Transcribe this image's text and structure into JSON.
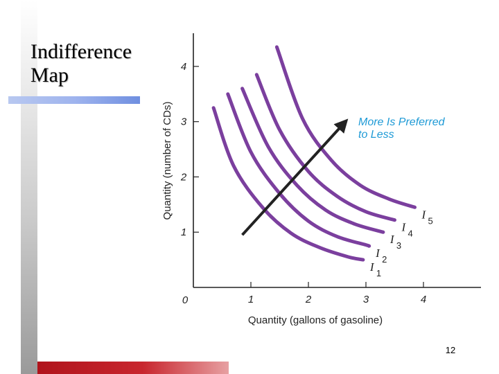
{
  "slide": {
    "title_lines": [
      "Indifference",
      "Map"
    ],
    "page_number": "12"
  },
  "colors": {
    "curve": "#7b3f9e",
    "annotation": "#1e9ad6",
    "arrow": "#222222",
    "axis_text": "#222222",
    "left_bar": "#b5b5b5",
    "top_rule": "#9fb4ee",
    "bottom_bar": "#c0141c"
  },
  "chart_data": {
    "type": "line",
    "title": "",
    "xlabel": "Quantity (gallons of gasoline)",
    "ylabel": "Quantity (number of CDs)",
    "xlim": [
      0,
      5
    ],
    "ylim": [
      0,
      4.6
    ],
    "origin_label": "0",
    "x_ticks": [
      1,
      2,
      3,
      4
    ],
    "x_tick_labels": [
      "1",
      "2",
      "3",
      "4"
    ],
    "y_ticks": [
      1,
      2,
      3,
      4
    ],
    "y_tick_labels": [
      "1",
      "2",
      "3",
      "4"
    ],
    "grid": false,
    "series": [
      {
        "name": "I",
        "subscript": "1",
        "x": [
          0.35,
          0.7,
          1.2,
          1.7,
          2.2,
          2.7,
          2.95
        ],
        "y": [
          3.25,
          2.2,
          1.45,
          0.98,
          0.72,
          0.55,
          0.5
        ]
      },
      {
        "name": "I",
        "subscript": "2",
        "x": [
          0.6,
          1.0,
          1.5,
          2.0,
          2.5,
          3.0,
          3.05
        ],
        "y": [
          3.5,
          2.45,
          1.7,
          1.2,
          0.92,
          0.77,
          0.75
        ]
      },
      {
        "name": "I",
        "subscript": "3",
        "x": [
          0.85,
          1.3,
          1.8,
          2.3,
          2.8,
          3.3
        ],
        "y": [
          3.6,
          2.55,
          1.85,
          1.4,
          1.15,
          1.0
        ]
      },
      {
        "name": "I",
        "subscript": "4",
        "x": [
          1.1,
          1.5,
          2.0,
          2.5,
          3.0,
          3.5
        ],
        "y": [
          3.85,
          2.85,
          2.1,
          1.65,
          1.37,
          1.22
        ]
      },
      {
        "name": "I",
        "subscript": "5",
        "x": [
          1.45,
          1.9,
          2.4,
          2.9,
          3.4,
          3.85
        ],
        "y": [
          4.35,
          3.05,
          2.3,
          1.85,
          1.6,
          1.45
        ]
      }
    ],
    "arrow": {
      "from": [
        0.85,
        0.95
      ],
      "to": [
        2.6,
        2.95
      ],
      "label": [
        "More Is Preferred",
        "to Less"
      ]
    }
  }
}
